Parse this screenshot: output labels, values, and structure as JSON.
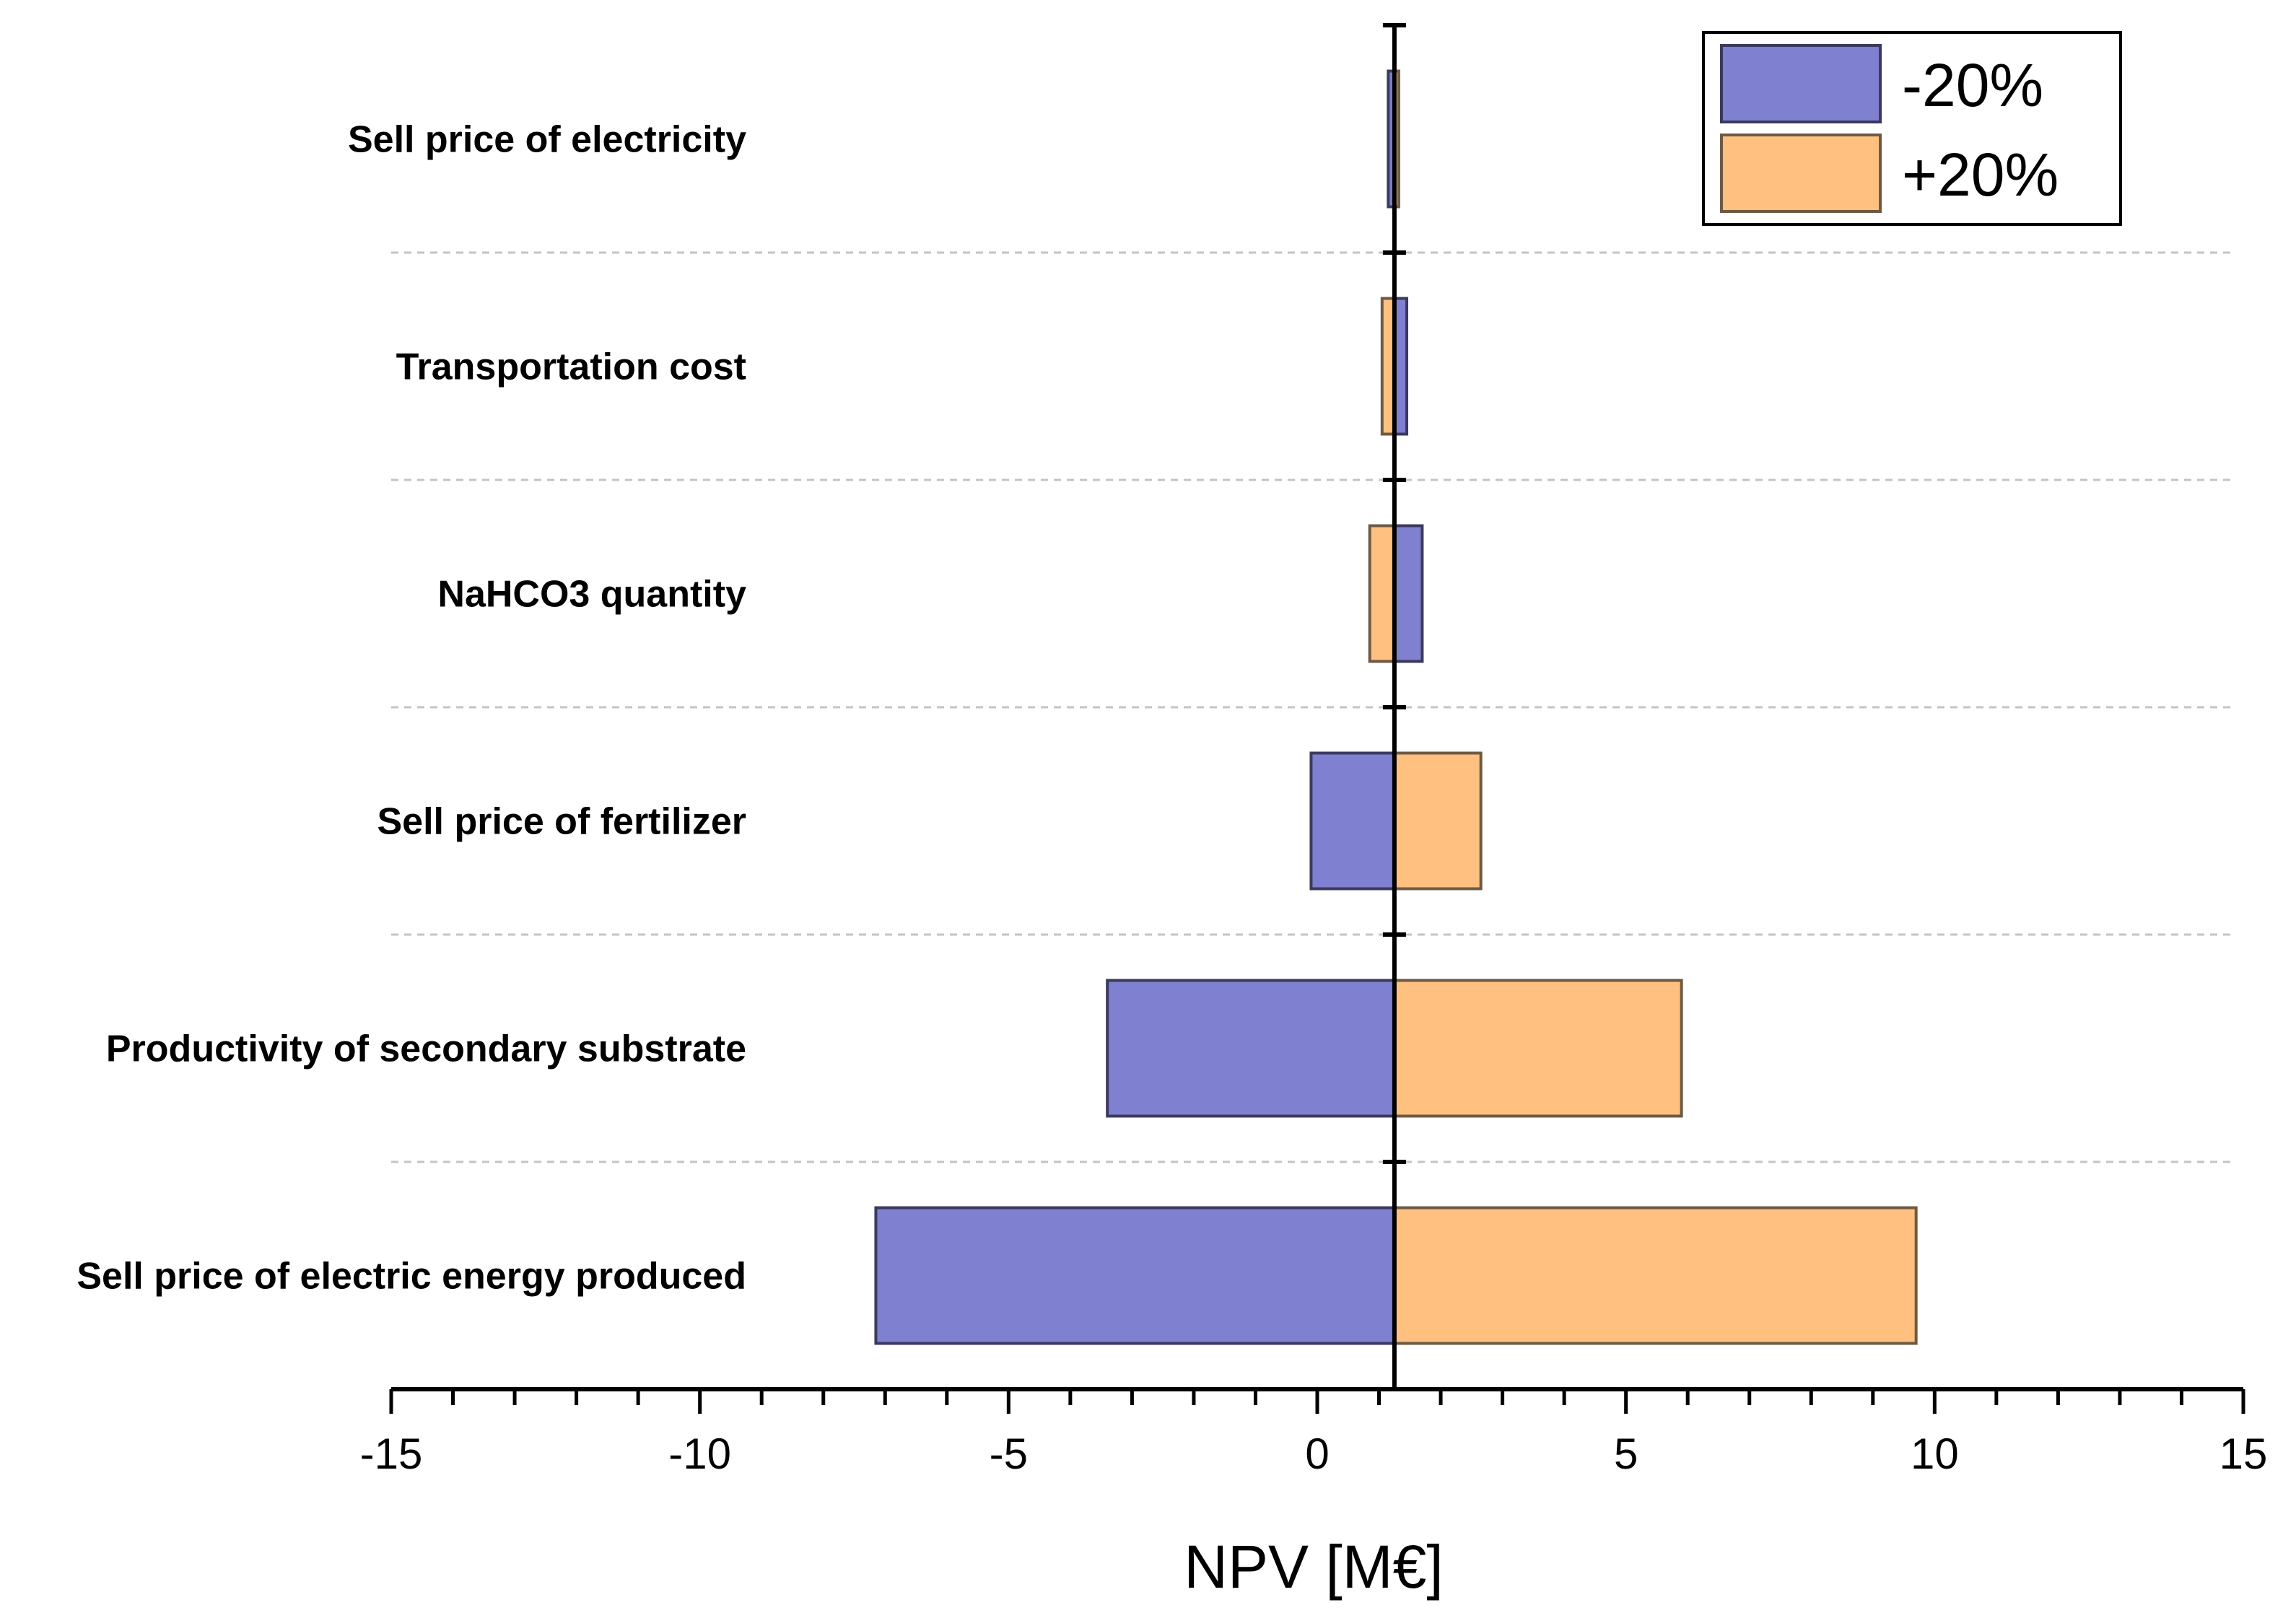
{
  "chart_data": {
    "type": "bar",
    "subtype": "tornado",
    "orientation": "horizontal",
    "title": "",
    "xlabel": "NPV [M€]",
    "ylabel": "",
    "xlim": [
      -15,
      15
    ],
    "xticks": [
      "-15",
      "-10",
      "-5",
      "0",
      "5",
      "10",
      "15"
    ],
    "baseline": 1.25,
    "grid": false,
    "legend_position": "top-right",
    "categories": [
      "Sell price of electricity",
      "Transportation cost",
      "NaHCO3 quantity",
      "Sell price of fertilizer",
      "Productivity of secondary substrate",
      "Sell price of electric energy produced"
    ],
    "series": [
      {
        "name": "-20%",
        "color": "#8080d0",
        "values": [
          1.15,
          1.45,
          1.7,
          -0.1,
          -3.4,
          -7.15
        ]
      },
      {
        "name": "+20%",
        "color": "#ffc080",
        "values": [
          1.3,
          1.05,
          0.85,
          2.65,
          5.9,
          9.7
        ]
      }
    ]
  }
}
